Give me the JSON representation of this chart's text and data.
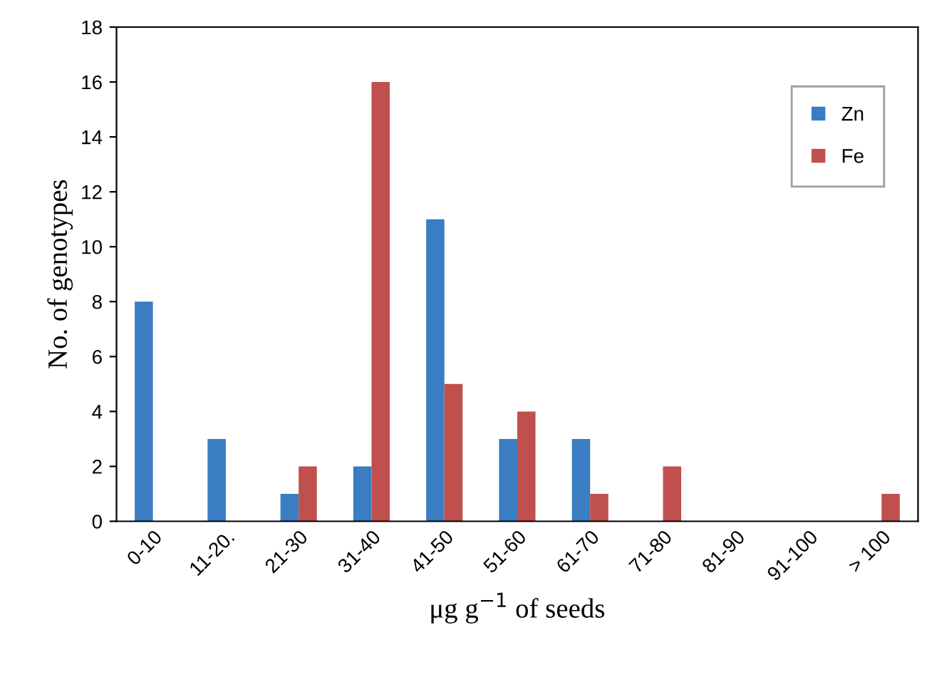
{
  "chart_data": {
    "type": "bar",
    "xlabel": "μg g$^{−1}$ of seeds",
    "ylabel": "No. of genotypes",
    "categories": [
      "0-10",
      "11-20.",
      "21-30",
      "31-40",
      "41-50",
      "51-60",
      "61-70",
      "71-80",
      "81-90",
      "91-100",
      "> 100"
    ],
    "series": [
      {
        "name": "Zn",
        "color": "#3a7dc2",
        "values": [
          8,
          3,
          1,
          2,
          11,
          3,
          3,
          0,
          0,
          0,
          0
        ]
      },
      {
        "name": "Fe",
        "color": "#c0504d",
        "values": [
          0,
          0,
          2,
          16,
          5,
          4,
          1,
          2,
          0,
          0,
          1
        ]
      }
    ],
    "ylim": [
      0,
      18
    ],
    "yticks": [
      0,
      2,
      4,
      6,
      8,
      10,
      12,
      14,
      16,
      18
    ],
    "grid": false,
    "legend": "top right"
  }
}
